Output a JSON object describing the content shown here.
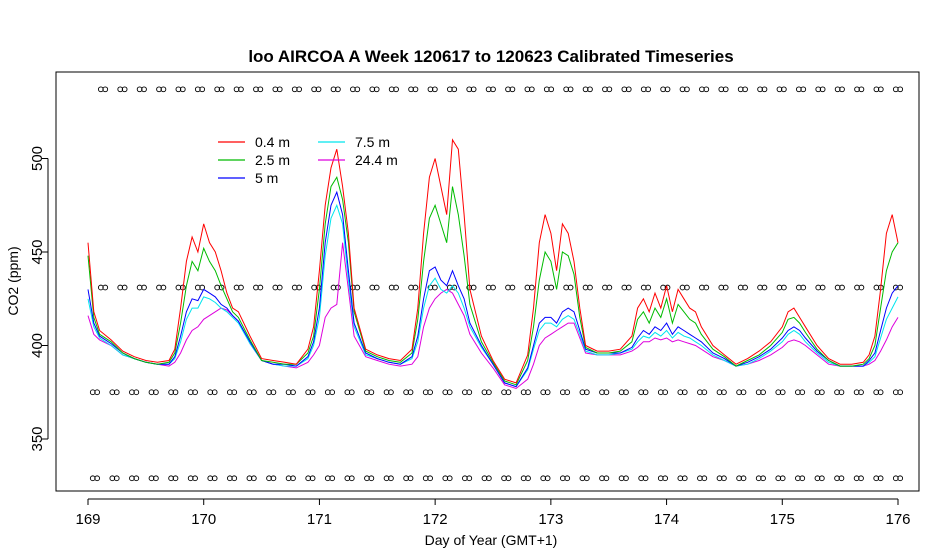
{
  "chart_data": {
    "type": "line",
    "title": "loo AIRCOA A  Week 120617 to 120623  Calibrated Timeseries",
    "xlabel": "Day of Year (GMT+1)",
    "ylabel": "CO2 (ppm)",
    "xlim": [
      169,
      176
    ],
    "ylim": [
      320,
      540
    ],
    "xticks": [
      "169",
      "170",
      "171",
      "172",
      "173",
      "174",
      "175",
      "176"
    ],
    "yticks": [
      "350",
      "400",
      "450",
      "500"
    ],
    "grid": false,
    "legend_position": "top-left",
    "series": [
      {
        "name": "0.4 m",
        "color": "#ff0000",
        "x": [
          169.0,
          169.05,
          169.1,
          169.2,
          169.3,
          169.4,
          169.5,
          169.6,
          169.7,
          169.75,
          169.8,
          169.85,
          169.9,
          169.95,
          170.0,
          170.05,
          170.1,
          170.15,
          170.2,
          170.25,
          170.3,
          170.4,
          170.5,
          170.6,
          170.7,
          170.8,
          170.9,
          170.95,
          171.0,
          171.05,
          171.1,
          171.15,
          171.2,
          171.25,
          171.3,
          171.4,
          171.5,
          171.6,
          171.7,
          171.8,
          171.85,
          171.9,
          171.95,
          172.0,
          172.05,
          172.1,
          172.15,
          172.2,
          172.25,
          172.3,
          172.4,
          172.5,
          172.6,
          172.7,
          172.8,
          172.85,
          172.9,
          172.95,
          173.0,
          173.05,
          173.1,
          173.15,
          173.2,
          173.25,
          173.3,
          173.4,
          173.5,
          173.6,
          173.7,
          173.75,
          173.8,
          173.85,
          173.9,
          173.95,
          174.0,
          174.05,
          174.1,
          174.15,
          174.2,
          174.25,
          174.3,
          174.4,
          174.5,
          174.6,
          174.7,
          174.8,
          174.9,
          175.0,
          175.05,
          175.1,
          175.15,
          175.2,
          175.3,
          175.4,
          175.5,
          175.6,
          175.7,
          175.75,
          175.8,
          175.85,
          175.9,
          175.95,
          176.0
        ],
        "values": [
          455,
          418,
          408,
          403,
          397,
          394,
          392,
          391,
          392,
          398,
          420,
          445,
          458,
          450,
          465,
          455,
          450,
          440,
          428,
          420,
          418,
          405,
          393,
          392,
          391,
          390,
          398,
          410,
          440,
          475,
          495,
          505,
          485,
          460,
          420,
          398,
          395,
          393,
          392,
          398,
          420,
          460,
          490,
          500,
          485,
          470,
          510,
          505,
          470,
          430,
          405,
          392,
          382,
          380,
          395,
          420,
          455,
          470,
          460,
          440,
          465,
          460,
          445,
          420,
          400,
          397,
          397,
          398,
          405,
          420,
          425,
          418,
          428,
          420,
          432,
          418,
          430,
          425,
          420,
          418,
          410,
          400,
          395,
          390,
          393,
          397,
          402,
          410,
          418,
          420,
          415,
          410,
          400,
          393,
          390,
          390,
          391,
          395,
          405,
          430,
          460,
          470,
          455
        ]
      },
      {
        "name": "2.5 m",
        "color": "#00bb00",
        "x": [
          169.0,
          169.05,
          169.1,
          169.2,
          169.3,
          169.4,
          169.5,
          169.6,
          169.7,
          169.75,
          169.8,
          169.85,
          169.9,
          169.95,
          170.0,
          170.05,
          170.1,
          170.15,
          170.2,
          170.25,
          170.3,
          170.4,
          170.5,
          170.6,
          170.7,
          170.8,
          170.9,
          170.95,
          171.0,
          171.05,
          171.1,
          171.15,
          171.2,
          171.25,
          171.3,
          171.4,
          171.5,
          171.6,
          171.7,
          171.8,
          171.85,
          171.9,
          171.95,
          172.0,
          172.05,
          172.1,
          172.15,
          172.2,
          172.25,
          172.3,
          172.4,
          172.5,
          172.6,
          172.7,
          172.8,
          172.85,
          172.9,
          172.95,
          173.0,
          173.05,
          173.1,
          173.15,
          173.2,
          173.25,
          173.3,
          173.4,
          173.5,
          173.6,
          173.7,
          173.75,
          173.8,
          173.85,
          173.9,
          173.95,
          174.0,
          174.05,
          174.1,
          174.15,
          174.2,
          174.25,
          174.3,
          174.4,
          174.5,
          174.6,
          174.7,
          174.8,
          174.9,
          175.0,
          175.05,
          175.1,
          175.15,
          175.2,
          175.3,
          175.4,
          175.5,
          175.6,
          175.7,
          175.75,
          175.8,
          175.85,
          175.9,
          175.95,
          176.0
        ],
        "values": [
          448,
          415,
          406,
          402,
          396,
          393,
          391,
          390,
          391,
          396,
          412,
          432,
          445,
          440,
          452,
          445,
          440,
          432,
          425,
          418,
          415,
          403,
          392,
          391,
          390,
          390,
          396,
          405,
          430,
          465,
          485,
          490,
          478,
          455,
          418,
          397,
          394,
          392,
          391,
          396,
          414,
          445,
          468,
          475,
          465,
          455,
          485,
          470,
          448,
          422,
          402,
          391,
          381,
          379,
          392,
          410,
          435,
          450,
          445,
          430,
          450,
          448,
          438,
          415,
          399,
          396,
          396,
          397,
          402,
          414,
          418,
          412,
          420,
          415,
          425,
          412,
          422,
          418,
          414,
          412,
          406,
          398,
          394,
          389,
          392,
          395,
          400,
          407,
          414,
          415,
          412,
          407,
          398,
          392,
          389,
          389,
          390,
          393,
          400,
          420,
          440,
          450,
          455
        ]
      },
      {
        "name": "5 m",
        "color": "#0000ff",
        "x": [
          169.0,
          169.05,
          169.1,
          169.2,
          169.3,
          169.4,
          169.5,
          169.6,
          169.7,
          169.75,
          169.8,
          169.85,
          169.9,
          169.95,
          170.0,
          170.05,
          170.1,
          170.15,
          170.2,
          170.25,
          170.3,
          170.4,
          170.5,
          170.6,
          170.7,
          170.8,
          170.9,
          170.95,
          171.0,
          171.05,
          171.1,
          171.15,
          171.2,
          171.25,
          171.3,
          171.4,
          171.5,
          171.6,
          171.7,
          171.8,
          171.85,
          171.9,
          171.95,
          172.0,
          172.05,
          172.1,
          172.15,
          172.2,
          172.25,
          172.3,
          172.4,
          172.5,
          172.6,
          172.7,
          172.8,
          172.85,
          172.9,
          172.95,
          173.0,
          173.05,
          173.1,
          173.15,
          173.2,
          173.25,
          173.3,
          173.4,
          173.5,
          173.6,
          173.7,
          173.75,
          173.8,
          173.85,
          173.9,
          173.95,
          174.0,
          174.05,
          174.1,
          174.15,
          174.2,
          174.25,
          174.3,
          174.4,
          174.5,
          174.6,
          174.7,
          174.8,
          174.9,
          175.0,
          175.05,
          175.1,
          175.15,
          175.2,
          175.3,
          175.4,
          175.5,
          175.6,
          175.7,
          175.75,
          175.8,
          175.85,
          175.9,
          175.95,
          176.0
        ],
        "values": [
          430,
          412,
          405,
          401,
          396,
          393,
          391,
          390,
          390,
          394,
          405,
          418,
          425,
          424,
          430,
          428,
          426,
          422,
          420,
          416,
          413,
          402,
          392,
          390,
          390,
          389,
          394,
          402,
          420,
          455,
          475,
          482,
          470,
          440,
          412,
          396,
          393,
          391,
          390,
          394,
          405,
          425,
          440,
          442,
          435,
          432,
          440,
          432,
          425,
          412,
          400,
          390,
          380,
          378,
          388,
          400,
          412,
          415,
          415,
          412,
          418,
          420,
          418,
          408,
          398,
          396,
          396,
          396,
          399,
          404,
          408,
          406,
          410,
          408,
          412,
          406,
          410,
          408,
          406,
          404,
          402,
          396,
          393,
          389,
          391,
          394,
          398,
          404,
          408,
          410,
          408,
          404,
          397,
          392,
          389,
          389,
          389,
          392,
          396,
          408,
          420,
          428,
          432
        ]
      },
      {
        "name": "7.5 m",
        "color": "#00e5ee",
        "x": [
          169.0,
          169.05,
          169.1,
          169.2,
          169.3,
          169.4,
          169.5,
          169.6,
          169.7,
          169.75,
          169.8,
          169.85,
          169.9,
          169.95,
          170.0,
          170.05,
          170.1,
          170.15,
          170.2,
          170.25,
          170.3,
          170.4,
          170.5,
          170.6,
          170.7,
          170.8,
          170.9,
          170.95,
          171.0,
          171.05,
          171.1,
          171.15,
          171.2,
          171.25,
          171.3,
          171.4,
          171.5,
          171.6,
          171.7,
          171.8,
          171.85,
          171.9,
          171.95,
          172.0,
          172.05,
          172.1,
          172.15,
          172.2,
          172.25,
          172.3,
          172.4,
          172.5,
          172.6,
          172.7,
          172.8,
          172.85,
          172.9,
          172.95,
          173.0,
          173.05,
          173.1,
          173.15,
          173.2,
          173.25,
          173.3,
          173.4,
          173.5,
          173.6,
          173.7,
          173.75,
          173.8,
          173.85,
          173.9,
          173.95,
          174.0,
          174.05,
          174.1,
          174.15,
          174.2,
          174.25,
          174.3,
          174.4,
          174.5,
          174.6,
          174.7,
          174.8,
          174.9,
          175.0,
          175.05,
          175.1,
          175.15,
          175.2,
          175.3,
          175.4,
          175.5,
          175.6,
          175.7,
          175.75,
          175.8,
          175.85,
          175.9,
          175.95,
          176.0
        ],
        "values": [
          425,
          410,
          404,
          400,
          395,
          393,
          391,
          390,
          390,
          393,
          402,
          414,
          420,
          420,
          426,
          425,
          423,
          420,
          418,
          415,
          412,
          401,
          392,
          390,
          389,
          389,
          393,
          400,
          415,
          448,
          468,
          475,
          465,
          435,
          410,
          395,
          393,
          391,
          390,
          393,
          402,
          420,
          432,
          436,
          430,
          428,
          432,
          428,
          420,
          410,
          399,
          390,
          380,
          378,
          387,
          398,
          408,
          412,
          412,
          410,
          414,
          416,
          414,
          406,
          397,
          395,
          395,
          396,
          398,
          402,
          405,
          404,
          407,
          405,
          408,
          404,
          407,
          405,
          404,
          402,
          400,
          395,
          392,
          389,
          390,
          393,
          397,
          402,
          406,
          408,
          406,
          402,
          396,
          391,
          389,
          389,
          389,
          391,
          394,
          404,
          414,
          420,
          426
        ]
      },
      {
        "name": "24.4 m",
        "color": "#dd00dd",
        "x": [
          169.0,
          169.05,
          169.1,
          169.2,
          169.3,
          169.4,
          169.5,
          169.6,
          169.7,
          169.75,
          169.8,
          169.85,
          169.9,
          169.95,
          170.0,
          170.05,
          170.1,
          170.15,
          170.2,
          170.25,
          170.3,
          170.4,
          170.5,
          170.6,
          170.7,
          170.8,
          170.9,
          170.95,
          171.0,
          171.05,
          171.1,
          171.15,
          171.2,
          171.25,
          171.3,
          171.4,
          171.5,
          171.6,
          171.7,
          171.8,
          171.85,
          171.9,
          171.95,
          172.0,
          172.05,
          172.1,
          172.15,
          172.2,
          172.25,
          172.3,
          172.4,
          172.5,
          172.6,
          172.7,
          172.8,
          172.85,
          172.9,
          172.95,
          173.0,
          173.05,
          173.1,
          173.15,
          173.2,
          173.25,
          173.3,
          173.4,
          173.5,
          173.6,
          173.7,
          173.75,
          173.8,
          173.85,
          173.9,
          173.95,
          174.0,
          174.05,
          174.1,
          174.15,
          174.2,
          174.25,
          174.3,
          174.4,
          174.5,
          174.6,
          174.7,
          174.8,
          174.9,
          175.0,
          175.05,
          175.1,
          175.15,
          175.2,
          175.3,
          175.4,
          175.5,
          175.6,
          175.7,
          175.75,
          175.8,
          175.85,
          175.9,
          175.95,
          176.0
        ],
        "values": [
          416,
          406,
          403,
          400,
          395,
          393,
          391,
          390,
          389,
          391,
          396,
          403,
          408,
          410,
          414,
          416,
          418,
          420,
          419,
          416,
          413,
          401,
          392,
          390,
          389,
          388,
          391,
          395,
          400,
          415,
          420,
          422,
          455,
          430,
          405,
          394,
          392,
          390,
          389,
          390,
          394,
          410,
          420,
          425,
          428,
          430,
          428,
          422,
          416,
          406,
          396,
          388,
          379,
          377,
          382,
          390,
          400,
          404,
          406,
          408,
          410,
          412,
          412,
          404,
          396,
          395,
          395,
          395,
          397,
          399,
          402,
          402,
          404,
          403,
          404,
          402,
          403,
          402,
          401,
          400,
          398,
          394,
          392,
          389,
          390,
          392,
          395,
          399,
          402,
          403,
          402,
          400,
          395,
          390,
          389,
          389,
          389,
          390,
          392,
          397,
          403,
          410,
          415
        ]
      }
    ],
    "marker_rows": [
      {
        "y": 537,
        "x_start": 169.13,
        "x_end": 176.0,
        "count": 42
      },
      {
        "y": 431,
        "x_start": 169.13,
        "x_end": 176.0,
        "count": 42
      },
      {
        "y": 375,
        "x_start": 169.06,
        "x_end": 176.0,
        "count": 42
      },
      {
        "y": 329,
        "x_start": 169.06,
        "x_end": 176.0,
        "count": 42
      }
    ]
  }
}
